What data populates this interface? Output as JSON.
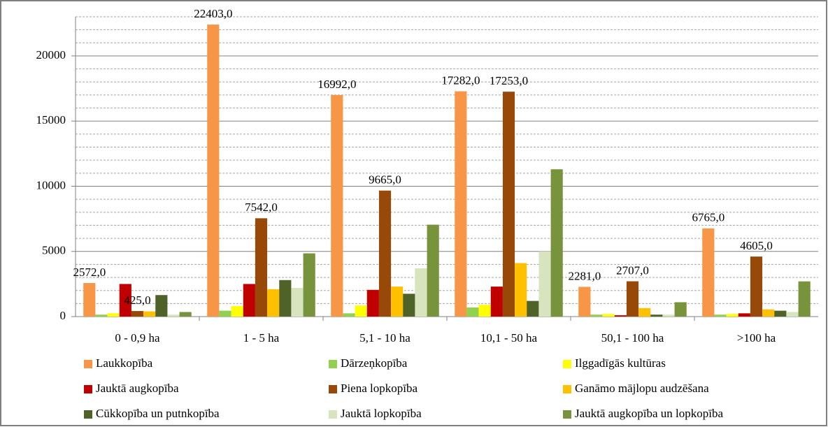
{
  "chart_data": {
    "type": "bar",
    "categories": [
      "0 - 0,9 ha",
      "1 - 5 ha",
      "5,1 - 10 ha",
      "10,1 - 50 ha",
      "50,1 - 100 ha",
      ">100 ha"
    ],
    "series": [
      {
        "name": "Laukkopība",
        "color": "#f79646",
        "values": [
          2572,
          22403,
          16992,
          17282,
          2281,
          6765
        ],
        "value_labels": [
          "2572,0",
          "22403,0",
          "16992,0",
          "17282,0",
          "2281,0",
          "6765,0"
        ]
      },
      {
        "name": "Dārzeņkopība",
        "color": "#92d050",
        "values": [
          150,
          450,
          250,
          700,
          150,
          150
        ]
      },
      {
        "name": "Ilggadīgās kultūras",
        "color": "#ffff00",
        "values": [
          250,
          800,
          850,
          900,
          200,
          200
        ]
      },
      {
        "name": "Jauktā augkopība",
        "color": "#c00000",
        "values": [
          2500,
          2500,
          2050,
          2300,
          100,
          250
        ]
      },
      {
        "name": "Piena lopkopība",
        "color": "#984807",
        "values": [
          425,
          7542,
          9665,
          17253,
          2707,
          4605
        ],
        "value_labels": [
          "425,0",
          "7542,0",
          "9665,0",
          "17253,0",
          "2707,0",
          "4605,0"
        ]
      },
      {
        "name": "Ganāmo mājlopu audzēšana",
        "color": "#ffc000",
        "values": [
          400,
          2100,
          2300,
          4100,
          650,
          550
        ]
      },
      {
        "name": "Cūkkopība un putnkopība",
        "color": "#4f6228",
        "values": [
          1650,
          2800,
          1750,
          1200,
          150,
          450
        ]
      },
      {
        "name": "Jauktā lopkopība",
        "color": "#d7e4bd",
        "values": [
          150,
          2200,
          3700,
          5000,
          150,
          350
        ]
      },
      {
        "name": "Jauktā augkopība un lopkopība",
        "color": "#77933c",
        "values": [
          350,
          4850,
          7050,
          11300,
          1100,
          2700
        ]
      }
    ],
    "ylim": [
      0,
      23000
    ],
    "yticks": [
      0,
      5000,
      10000,
      15000,
      20000
    ],
    "minor_yticks": [
      1000,
      2000,
      3000,
      4000,
      6000,
      7000,
      8000,
      9000,
      11000,
      12000,
      13000,
      14000,
      16000,
      17000,
      18000,
      19000,
      21000,
      22000,
      23000
    ],
    "grid": true,
    "legend": "bottom"
  }
}
